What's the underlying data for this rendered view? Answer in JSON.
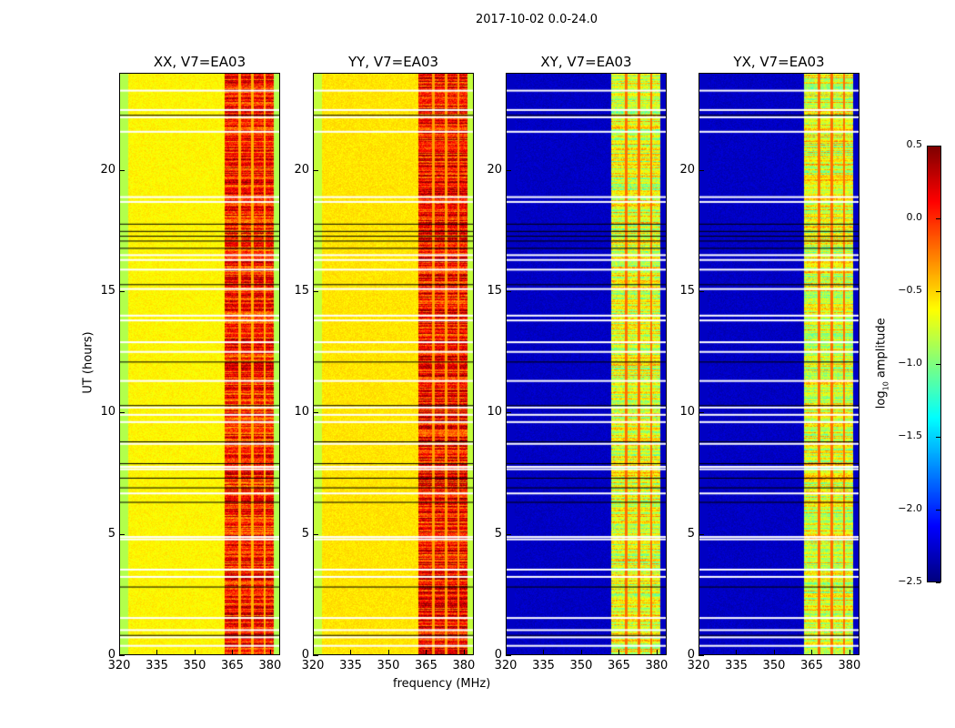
{
  "figure": {
    "title": "2017-10-02 0.0-24.0",
    "xlabel": "frequency (MHz)",
    "ylabel": "UT (hours)"
  },
  "chart_data": {
    "type": "heatmap",
    "colormap": "jet",
    "xlim": [
      320,
      384
    ],
    "ylim": [
      0,
      24
    ],
    "xticks": [
      320,
      335,
      350,
      365,
      380
    ],
    "yticks": [
      0,
      5,
      10,
      15,
      20
    ],
    "panels": [
      {
        "title": "XX, V7=EA03",
        "background_level": -0.6,
        "band_level": 0.05,
        "edge_level": -0.85
      },
      {
        "title": "YY, V7=EA03",
        "background_level": -0.55,
        "band_level": 0.1,
        "edge_level": -0.8
      },
      {
        "title": "XY, V7=EA03",
        "background_level": -2.3,
        "band_level": -0.7,
        "edge_level": -2.3
      },
      {
        "title": "YX, V7=EA03",
        "background_level": -2.3,
        "band_level": -0.7,
        "edge_level": -2.3
      }
    ],
    "bright_bands_mhz": [
      [
        362,
        367.5
      ],
      [
        368.5,
        372.5
      ],
      [
        373.5,
        377.5
      ],
      [
        378.5,
        381.5
      ]
    ],
    "flagged_white_hours": [
      0.35,
      0.7,
      1.0,
      1.5,
      3.2,
      3.5,
      4.75,
      4.85,
      6.65,
      7.65,
      7.75,
      8.7,
      9.6,
      9.9,
      10.2,
      11.3,
      12.5,
      12.9,
      13.8,
      14.0,
      15.1,
      15.9,
      16.3,
      16.5,
      18.7,
      18.9,
      21.6,
      22.2,
      22.5,
      23.3
    ],
    "flagged_black_hours": [
      0.8,
      2.8,
      6.3,
      6.9,
      7.3,
      7.9,
      8.8,
      10.3,
      12.1,
      15.3,
      16.8,
      17.1,
      17.3,
      17.5,
      17.8,
      22.3
    ],
    "colorbar": {
      "label": "log10 amplitude",
      "range": [
        -2.5,
        0.5
      ],
      "ticks": [
        "0.5",
        "0.0",
        "−0.5",
        "−1.0",
        "−1.5",
        "−2.0",
        "−2.5"
      ],
      "tick_values": [
        0.5,
        0.0,
        -0.5,
        -1.0,
        -1.5,
        -2.0,
        -2.5
      ]
    }
  }
}
